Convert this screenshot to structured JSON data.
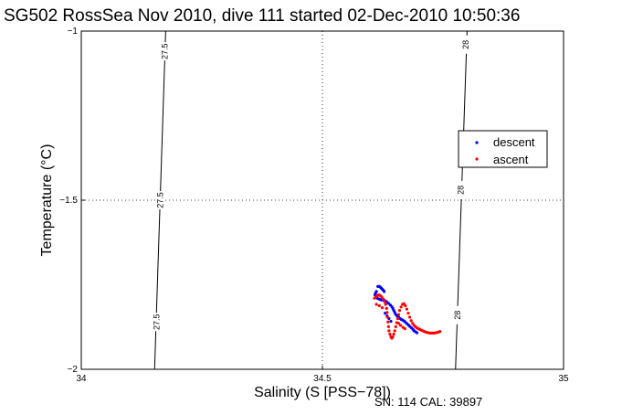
{
  "chart_data": {
    "type": "scatter",
    "title": "SG502 RossSea Nov 2010, dive 111 started 02-Dec-2010 10:50:36",
    "xlabel": "Salinity (S [PSS−78])",
    "ylabel": "Temperature (°C)",
    "xlim": [
      34,
      35
    ],
    "ylim": [
      -2,
      -1
    ],
    "xticks": [
      "34",
      "34.5",
      "35"
    ],
    "yticks": [
      "-1",
      "-1.5",
      "-2"
    ],
    "grid": "dotted",
    "legend_position": "right",
    "footer": "SN: 114  CAL: 39897",
    "contours": [
      {
        "label": "27.5",
        "points": [
          [
            34.175,
            -1.0
          ],
          [
            34.152,
            -2.0
          ]
        ],
        "label_positions": [
          [
            34.173,
            -1.06
          ],
          [
            34.164,
            -1.5
          ],
          [
            34.156,
            -1.86
          ]
        ]
      },
      {
        "label": "28",
        "points": [
          [
            34.8,
            -1.0
          ],
          [
            34.776,
            -2.0
          ]
        ],
        "label_positions": [
          [
            34.797,
            -1.04
          ],
          [
            34.787,
            -1.47
          ],
          [
            34.78,
            -1.84
          ]
        ]
      }
    ],
    "series": [
      {
        "name": "descent",
        "color": "#0000ff",
        "x": [
          34.615,
          34.618,
          34.62,
          34.622,
          34.624,
          34.626,
          34.628,
          34.612,
          34.61,
          34.609,
          34.611,
          34.614,
          34.617,
          34.62,
          34.623,
          34.626,
          34.629,
          34.633,
          34.637,
          34.641,
          34.644,
          34.646,
          34.648,
          34.65,
          34.652,
          34.655,
          34.658,
          34.661,
          34.664,
          34.667,
          34.67,
          34.673,
          34.676,
          34.679,
          34.682,
          34.685,
          34.688,
          34.69,
          34.693,
          34.696,
          34.63,
          34.634,
          34.638,
          34.642
        ],
        "y": [
          -1.755,
          -1.755,
          -1.757,
          -1.76,
          -1.763,
          -1.766,
          -1.77,
          -1.77,
          -1.775,
          -1.78,
          -1.786,
          -1.79,
          -1.792,
          -1.794,
          -1.795,
          -1.795,
          -1.797,
          -1.8,
          -1.805,
          -1.81,
          -1.815,
          -1.82,
          -1.826,
          -1.832,
          -1.838,
          -1.842,
          -1.846,
          -1.85,
          -1.853,
          -1.855,
          -1.858,
          -1.862,
          -1.866,
          -1.87,
          -1.874,
          -1.878,
          -1.882,
          -1.886,
          -1.889,
          -1.892,
          -1.834,
          -1.842,
          -1.85,
          -1.858
        ]
      },
      {
        "name": "ascent",
        "color": "#ff0000",
        "x": [
          34.608,
          34.611,
          34.614,
          34.617,
          34.62,
          34.623,
          34.626,
          34.629,
          34.631,
          34.633,
          34.634,
          34.635,
          34.636,
          34.637,
          34.638,
          34.64,
          34.642,
          34.644,
          34.646,
          34.648,
          34.65,
          34.652,
          34.654,
          34.656,
          34.658,
          34.66,
          34.663,
          34.666,
          34.669,
          34.672,
          34.675,
          34.678,
          34.681,
          34.684,
          34.687,
          34.69,
          34.693,
          34.696,
          34.699,
          34.702,
          34.705,
          34.708,
          34.711,
          34.714,
          34.717,
          34.72,
          34.723,
          34.726,
          34.729,
          34.732,
          34.735,
          34.738,
          34.741,
          34.744,
          34.612,
          34.618,
          34.624,
          34.658,
          34.662,
          34.667,
          34.671
        ],
        "y": [
          -1.79,
          -1.785,
          -1.782,
          -1.78,
          -1.782,
          -1.786,
          -1.792,
          -1.8,
          -1.808,
          -1.82,
          -1.832,
          -1.846,
          -1.86,
          -1.874,
          -1.886,
          -1.896,
          -1.904,
          -1.908,
          -1.904,
          -1.896,
          -1.886,
          -1.874,
          -1.862,
          -1.85,
          -1.838,
          -1.826,
          -1.816,
          -1.808,
          -1.806,
          -1.812,
          -1.822,
          -1.834,
          -1.846,
          -1.856,
          -1.864,
          -1.87,
          -1.874,
          -1.878,
          -1.88,
          -1.882,
          -1.884,
          -1.886,
          -1.888,
          -1.89,
          -1.891,
          -1.892,
          -1.893,
          -1.893,
          -1.893,
          -1.893,
          -1.892,
          -1.891,
          -1.89,
          -1.888,
          -1.808,
          -1.812,
          -1.818,
          -1.864,
          -1.87,
          -1.876,
          -1.88
        ]
      }
    ]
  }
}
